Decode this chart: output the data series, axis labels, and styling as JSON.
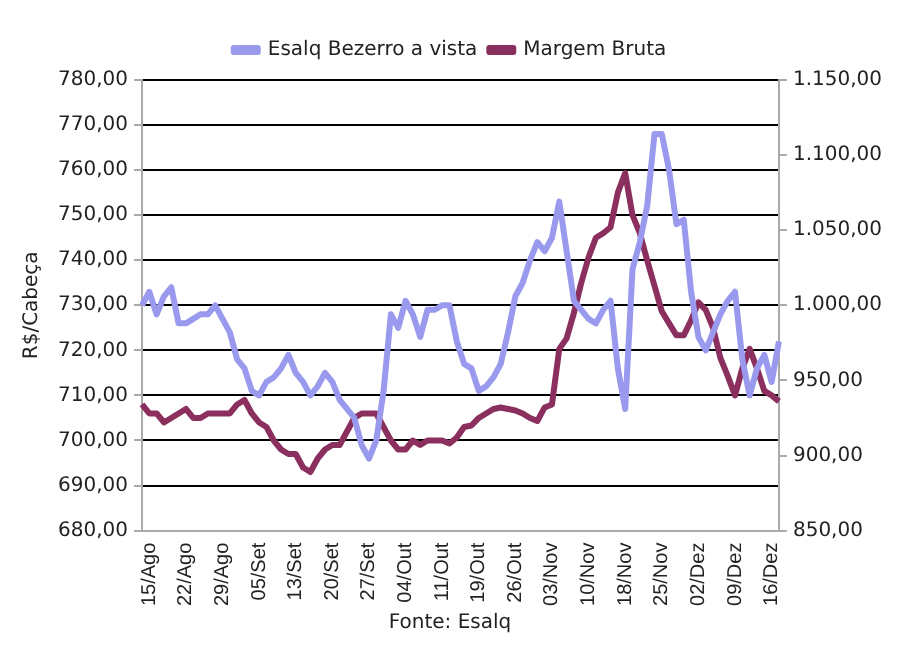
{
  "chart_data": {
    "type": "line",
    "ylabel": "R$/Cabeça",
    "legend": "top",
    "grid": "y",
    "line_style": "solid",
    "marker": "none",
    "categories": [
      null,
      "15/Ago",
      null,
      null,
      null,
      null,
      "22/Ago",
      null,
      null,
      null,
      null,
      "29/Ago",
      null,
      null,
      null,
      null,
      "05/Set",
      null,
      null,
      null,
      null,
      "13/Set",
      null,
      null,
      null,
      null,
      "20/Set",
      null,
      null,
      null,
      null,
      "27/Set",
      null,
      null,
      null,
      null,
      "04/Out",
      null,
      null,
      null,
      null,
      "11/Out",
      null,
      null,
      null,
      null,
      "19/Out",
      null,
      null,
      null,
      null,
      "26/Out",
      null,
      null,
      null,
      null,
      "03/Nov",
      null,
      null,
      null,
      null,
      "10/Nov",
      null,
      null,
      null,
      null,
      "18/Nov",
      null,
      null,
      null,
      null,
      "25/Nov",
      null,
      null,
      null,
      null,
      "02/Dez",
      null,
      null,
      null,
      null,
      "09/Dez",
      null,
      null,
      null,
      null,
      "16/Dez",
      null
    ],
    "ylim": [
      680,
      780
    ],
    "yticks": [
      {
        "value": 680,
        "label": "680,00"
      },
      {
        "value": 690,
        "label": "690,00"
      },
      {
        "value": 700,
        "label": "700,00"
      },
      {
        "value": 710,
        "label": "710,00"
      },
      {
        "value": 720,
        "label": "720,00"
      },
      {
        "value": 730,
        "label": "730,00"
      },
      {
        "value": 740,
        "label": "740,00"
      },
      {
        "value": 750,
        "label": "750,00"
      },
      {
        "value": 760,
        "label": "760,00"
      },
      {
        "value": 770,
        "label": "770,00"
      },
      {
        "value": 780,
        "label": "780,00"
      }
    ],
    "y2lim": [
      850,
      1150
    ],
    "y2ticks": [
      {
        "value": 850,
        "label": "850,00"
      },
      {
        "value": 900,
        "label": "900,00"
      },
      {
        "value": 950,
        "label": "950,00"
      },
      {
        "value": 1000,
        "label": "1.000,00"
      },
      {
        "value": 1050,
        "label": "1.050,00"
      },
      {
        "value": 1100,
        "label": "1.100,00"
      },
      {
        "value": 1150,
        "label": "1.150,00"
      }
    ],
    "series": [
      {
        "name": "Esalq Bezerro a vista",
        "color": "#9999ee",
        "values": [
          730,
          733,
          728,
          732,
          734,
          726,
          726,
          727,
          728,
          728,
          730,
          727,
          724,
          718,
          716,
          711,
          710,
          713,
          714,
          716,
          719,
          715,
          713,
          710,
          712,
          715,
          713,
          709,
          707,
          705,
          699,
          696,
          700,
          711,
          728,
          725,
          731,
          728,
          723,
          729,
          729,
          730,
          730,
          722,
          717,
          716,
          711,
          712,
          714,
          717,
          724,
          732,
          735,
          740,
          744,
          742,
          745,
          753,
          742,
          731,
          729,
          727,
          726,
          729,
          731,
          716,
          707,
          738,
          744,
          752,
          768,
          768,
          760,
          748,
          749,
          733,
          723,
          720,
          724,
          728,
          731,
          733,
          718,
          710,
          716,
          719,
          713,
          722
        ]
      },
      {
        "name": "Margem Bruta",
        "color": "#8b2f5e",
        "axis": "y2",
        "values": [
          934,
          928,
          928,
          922,
          925,
          928,
          931,
          925,
          925,
          928,
          928,
          928,
          928,
          934,
          937,
          928,
          922,
          919,
          910,
          904,
          901,
          901,
          892,
          889,
          898,
          904,
          907,
          907,
          916,
          925,
          928,
          928,
          928,
          919,
          910,
          904,
          904,
          910,
          907,
          910,
          910,
          910,
          908,
          912,
          919,
          920,
          925,
          928,
          931,
          932,
          931,
          930,
          928,
          925,
          923,
          932,
          934,
          971,
          978,
          995,
          1015,
          1032,
          1045,
          1048,
          1052,
          1075,
          1088,
          1060,
          1048,
          1030,
          1013,
          996,
          988,
          980,
          980,
          990,
          1002,
          997,
          985,
          965,
          953,
          940,
          958,
          971,
          958,
          943,
          940,
          936
        ]
      }
    ],
    "annotations": [
      "Fonte: Esalq"
    ]
  }
}
